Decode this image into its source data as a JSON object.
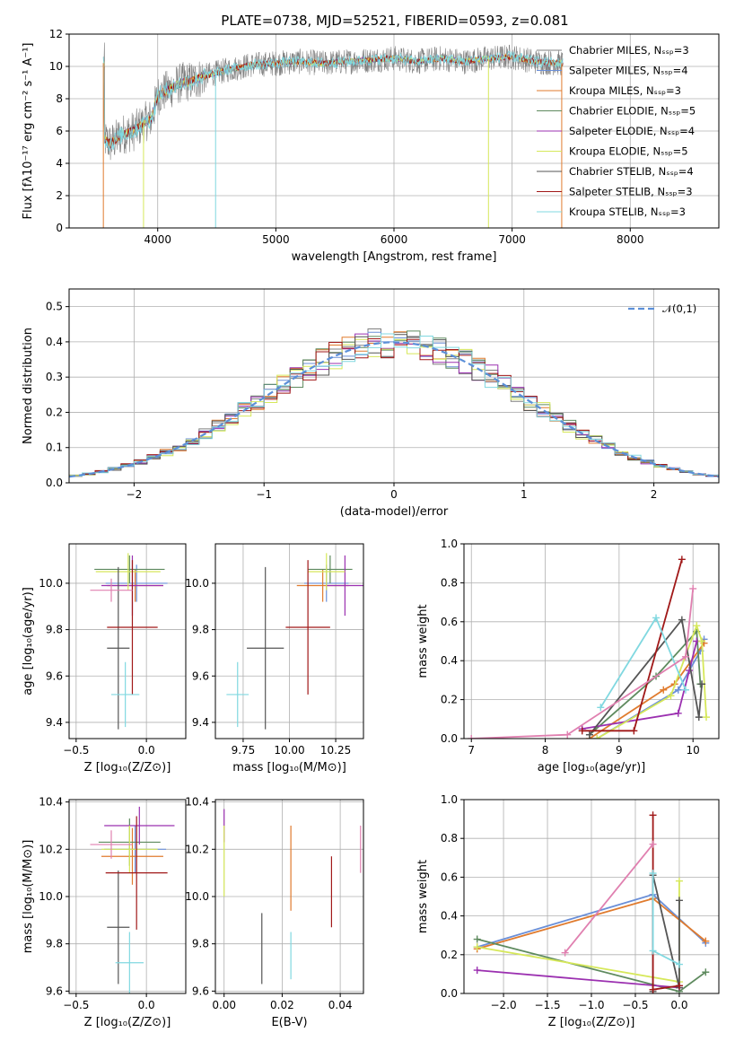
{
  "title": "PLATE=0738, MJD=52521, FIBERID=0593, z=0.081",
  "colors": {
    "chabrier_miles": "#808080",
    "salpeter_miles": "#6a8fd8",
    "kroupa_miles": "#e07b2e",
    "chabrier_elodie": "#5e8a5e",
    "salpeter_elodie": "#9b30b0",
    "kroupa_elodie": "#d6e85a",
    "chabrier_stelib": "#555555",
    "salpeter_stelib": "#a01818",
    "kroupa_stelib": "#80d8e0",
    "pink": "#e080b0",
    "gauss": "#5b8fd8"
  },
  "chart_data": [
    {
      "id": "spectrum",
      "type": "line",
      "xlabel": "wavelength [Angstrom, rest frame]",
      "ylabel": "Flux [fλ10⁻¹⁷ erg cm⁻² s⁻¹ A⁻¹]",
      "xlim": [
        3250,
        8750
      ],
      "ylim": [
        0,
        12
      ],
      "xticks": [
        4000,
        5000,
        6000,
        7000,
        8000
      ],
      "yticks": [
        0,
        2,
        4,
        6,
        8,
        10,
        12
      ],
      "legend_placement": "right",
      "legend": [
        {
          "label": "Chabrier MILES, Nₛₛₚ=3",
          "color": "#808080"
        },
        {
          "label": "Salpeter MILES, Nₛₛₚ=4",
          "color": "#6a8fd8"
        },
        {
          "label": "Kroupa MILES, Nₛₛₚ=3",
          "color": "#e07b2e"
        },
        {
          "label": "Chabrier ELODIE, Nₛₛₚ=5",
          "color": "#5e8a5e"
        },
        {
          "label": "Salpeter ELODIE, Nₛₛₚ=4",
          "color": "#9b30b0"
        },
        {
          "label": "Kroupa ELODIE, Nₛₛₚ=5",
          "color": "#d6e85a"
        },
        {
          "label": "Chabrier STELIB, Nₛₛₚ=4",
          "color": "#555555"
        },
        {
          "label": "Salpeter STELIB, Nₛₛₚ=3",
          "color": "#a01818"
        },
        {
          "label": "Kroupa STELIB, Nₛₛₚ=3",
          "color": "#80d8e0"
        }
      ],
      "data_series": {
        "x": [
          3550,
          3600,
          3700,
          3800,
          3900,
          3950,
          4000,
          4100,
          4200,
          4300,
          4400,
          4500,
          4600,
          4800,
          5000,
          5200,
          5400,
          5600,
          5800,
          6000,
          6200,
          6400,
          6600,
          6800,
          7000,
          7200,
          7400
        ],
        "y": [
          5.5,
          5.2,
          5.8,
          6.0,
          6.6,
          6.8,
          8.2,
          8.6,
          9.0,
          9.1,
          9.4,
          9.6,
          9.8,
          10.1,
          10.2,
          10.3,
          10.2,
          10.3,
          10.4,
          10.5,
          10.3,
          10.5,
          10.3,
          10.5,
          10.6,
          10.3,
          10.2
        ]
      }
    },
    {
      "id": "residuals",
      "type": "bar",
      "xlabel": "(data-model)/error",
      "ylabel": "Normed distribution",
      "xlim": [
        -2.5,
        2.5
      ],
      "ylim": [
        0,
        0.55
      ],
      "xticks": [
        -2,
        -1,
        0,
        1,
        2
      ],
      "yticks": [
        0.0,
        0.1,
        0.2,
        0.3,
        0.4,
        0.5
      ],
      "xticklabels": [
        "−2",
        "−1",
        "0",
        "1",
        "2"
      ],
      "legend": [
        {
          "label": "𝒩(0,1)",
          "style": "dashed"
        }
      ],
      "bin_width": 0.1
    },
    {
      "id": "age_vs_Z",
      "type": "scatter",
      "xlabel": "Z [log₁₀(Z/Z⊙)]",
      "ylabel": "age  [log₁₀(age/yr)]",
      "xlim": [
        -0.55,
        0.28
      ],
      "ylim": [
        9.33,
        10.17
      ],
      "xticks": [
        -0.5,
        0.0
      ],
      "yticks": [
        9.4,
        9.6,
        9.8,
        10.0
      ],
      "xticklabels": [
        "−0.5",
        "0.0"
      ],
      "points": [
        {
          "x": -0.07,
          "y": 10.0,
          "xerr": 0.22,
          "yerr": 0.08,
          "color": "#6a8fd8"
        },
        {
          "x": -0.08,
          "y": 9.99,
          "xerr": 0.2,
          "yerr": 0.07,
          "color": "#e07b2e"
        },
        {
          "x": -0.12,
          "y": 10.06,
          "xerr": 0.25,
          "yerr": 0.06,
          "color": "#5e8a5e"
        },
        {
          "x": -0.1,
          "y": 9.99,
          "xerr": 0.22,
          "yerr": 0.13,
          "color": "#9b30b0"
        },
        {
          "x": -0.13,
          "y": 10.05,
          "xerr": 0.23,
          "yerr": 0.08,
          "color": "#d6e85a"
        },
        {
          "x": -0.2,
          "y": 9.72,
          "xerr": 0.08,
          "yerr": 0.35,
          "color": "#555555"
        },
        {
          "x": -0.1,
          "y": 9.81,
          "xerr": 0.18,
          "yerr": 0.29,
          "color": "#a01818"
        },
        {
          "x": -0.15,
          "y": 9.52,
          "xerr": 0.1,
          "yerr": 0.14,
          "color": "#80d8e0"
        },
        {
          "x": -0.25,
          "y": 9.97,
          "xerr": 0.15,
          "yerr": 0.05,
          "color": "#e080b0"
        }
      ]
    },
    {
      "id": "age_vs_mass",
      "type": "scatter",
      "xlabel": "mass [log₁₀(M/M⊙)]",
      "ylabel": "",
      "xlim": [
        9.6,
        10.4
      ],
      "ylim": [
        9.33,
        10.17
      ],
      "xticks": [
        9.75,
        10.0,
        10.25
      ],
      "yticks": [
        9.4,
        9.6,
        9.8,
        10.0
      ],
      "xticklabels": [
        "9.75",
        "10.00",
        "10.25"
      ],
      "points": [
        {
          "x": 10.2,
          "y": 10.0,
          "xerr": 0.12,
          "yerr": 0.08,
          "color": "#6a8fd8"
        },
        {
          "x": 10.18,
          "y": 9.99,
          "xerr": 0.14,
          "yerr": 0.07,
          "color": "#e07b2e"
        },
        {
          "x": 10.22,
          "y": 10.06,
          "xerr": 0.12,
          "yerr": 0.06,
          "color": "#5e8a5e"
        },
        {
          "x": 10.3,
          "y": 9.99,
          "xerr": 0.1,
          "yerr": 0.13,
          "color": "#9b30b0"
        },
        {
          "x": 10.2,
          "y": 10.05,
          "xerr": 0.1,
          "yerr": 0.08,
          "color": "#d6e85a"
        },
        {
          "x": 9.87,
          "y": 9.72,
          "xerr": 0.1,
          "yerr": 0.35,
          "color": "#555555"
        },
        {
          "x": 10.1,
          "y": 9.81,
          "xerr": 0.12,
          "yerr": 0.29,
          "color": "#a01818"
        },
        {
          "x": 9.72,
          "y": 9.52,
          "xerr": 0.06,
          "yerr": 0.14,
          "color": "#80d8e0"
        }
      ]
    },
    {
      "id": "weight_vs_age",
      "type": "line",
      "xlabel": "age  [log₁₀(age/yr)]",
      "ylabel": "mass weight",
      "xlim": [
        6.9,
        10.35
      ],
      "ylim": [
        0,
        1
      ],
      "xticks": [
        7,
        8,
        9,
        10
      ],
      "yticks": [
        0.0,
        0.2,
        0.4,
        0.6,
        0.8,
        1.0
      ],
      "series": [
        {
          "color": "#6a8fd8",
          "x": [
            8.7,
            9.8,
            10.1,
            10.15
          ],
          "y": [
            0.0,
            0.25,
            0.45,
            0.51
          ]
        },
        {
          "color": "#e07b2e",
          "x": [
            8.6,
            9.6,
            9.75,
            10.15
          ],
          "y": [
            0.0,
            0.25,
            0.28,
            0.49
          ]
        },
        {
          "color": "#5e8a5e",
          "x": [
            8.6,
            9.5,
            10.05,
            10.1
          ],
          "y": [
            0.02,
            0.32,
            0.55,
            0.28
          ]
        },
        {
          "color": "#9b30b0",
          "x": [
            8.5,
            9.8,
            9.95,
            10.05
          ],
          "y": [
            0.05,
            0.13,
            0.35,
            0.5
          ]
        },
        {
          "color": "#d6e85a",
          "x": [
            8.7,
            9.7,
            10.05,
            10.12,
            10.18
          ],
          "y": [
            0.0,
            0.22,
            0.58,
            0.5,
            0.11
          ]
        },
        {
          "color": "#555555",
          "x": [
            8.6,
            9.85,
            10.08,
            10.12
          ],
          "y": [
            0.02,
            0.61,
            0.11,
            0.28
          ]
        },
        {
          "color": "#a01818",
          "x": [
            8.5,
            9.2,
            9.85
          ],
          "y": [
            0.04,
            0.04,
            0.92
          ]
        },
        {
          "color": "#80d8e0",
          "x": [
            8.75,
            9.5,
            9.9
          ],
          "y": [
            0.16,
            0.62,
            0.25
          ]
        },
        {
          "color": "#e080b0",
          "x": [
            7.0,
            8.3,
            9.9,
            10.0
          ],
          "y": [
            0.0,
            0.02,
            0.42,
            0.77
          ]
        }
      ]
    },
    {
      "id": "mass_vs_Z",
      "type": "scatter",
      "xlabel": "Z [log₁₀(Z/Z⊙)]",
      "ylabel": "mass [log₁₀(M/M⊙)]",
      "xlim": [
        -0.55,
        0.28
      ],
      "ylim": [
        9.59,
        10.41
      ],
      "xticks": [
        -0.5,
        0.0
      ],
      "yticks": [
        9.6,
        9.8,
        10.0,
        10.2,
        10.4
      ],
      "xticklabels": [
        "−0.5",
        "0.0"
      ],
      "points": [
        {
          "x": -0.08,
          "y": 10.2,
          "xerr": 0.22,
          "yerr": 0.1,
          "color": "#6a8fd8"
        },
        {
          "x": -0.1,
          "y": 10.17,
          "xerr": 0.22,
          "yerr": 0.12,
          "color": "#e07b2e"
        },
        {
          "x": -0.12,
          "y": 10.23,
          "xerr": 0.22,
          "yerr": 0.1,
          "color": "#5e8a5e"
        },
        {
          "x": -0.05,
          "y": 10.3,
          "xerr": 0.25,
          "yerr": 0.08,
          "color": "#9b30b0"
        },
        {
          "x": -0.12,
          "y": 10.2,
          "xerr": 0.2,
          "yerr": 0.1,
          "color": "#d6e85a"
        },
        {
          "x": -0.2,
          "y": 9.87,
          "xerr": 0.08,
          "yerr": 0.24,
          "color": "#555555"
        },
        {
          "x": -0.07,
          "y": 10.1,
          "xerr": 0.22,
          "yerr": 0.24,
          "color": "#a01818"
        },
        {
          "x": -0.12,
          "y": 9.72,
          "xerr": 0.1,
          "yerr": 0.13,
          "color": "#80d8e0"
        },
        {
          "x": -0.25,
          "y": 10.22,
          "xerr": 0.15,
          "yerr": 0.06,
          "color": "#e080b0"
        }
      ]
    },
    {
      "id": "mass_vs_ebv",
      "type": "scatter",
      "xlabel": "E(B-V)",
      "ylabel": "",
      "xlim": [
        -0.003,
        0.048
      ],
      "ylim": [
        9.59,
        10.41
      ],
      "xticks": [
        0.0,
        0.02,
        0.04
      ],
      "yticks": [
        9.6,
        9.8,
        10.0,
        10.2,
        10.4
      ],
      "xticklabels": [
        "0.00",
        "0.02",
        "0.04"
      ],
      "points": [
        {
          "x": 0.0,
          "y": 10.3,
          "yerr": 0.07,
          "color": "#9b30b0"
        },
        {
          "x": 0.0,
          "y": 10.15,
          "yerr": 0.15,
          "color": "#d6e85a"
        },
        {
          "x": 0.013,
          "y": 9.78,
          "yerr": 0.15,
          "color": "#555555"
        },
        {
          "x": 0.023,
          "y": 10.12,
          "yerr": 0.18,
          "color": "#e07b2e"
        },
        {
          "x": 0.023,
          "y": 9.75,
          "yerr": 0.1,
          "color": "#80d8e0"
        },
        {
          "x": 0.037,
          "y": 10.02,
          "yerr": 0.15,
          "color": "#a01818"
        },
        {
          "x": 0.047,
          "y": 10.2,
          "yerr": 0.1,
          "color": "#e080b0"
        }
      ]
    },
    {
      "id": "weight_vs_Z",
      "type": "line",
      "xlabel": "Z [log₁₀(Z/Z⊙)]",
      "ylabel": "mass weight",
      "xlim": [
        -2.45,
        0.45
      ],
      "ylim": [
        0,
        1
      ],
      "xticks": [
        -2.0,
        -1.5,
        -1.0,
        -0.5,
        0.0
      ],
      "yticks": [
        0.0,
        0.2,
        0.4,
        0.6,
        0.8,
        1.0
      ],
      "xticklabels": [
        "−2.0",
        "−1.5",
        "−1.0",
        "−0.5",
        "0.0"
      ],
      "series": [
        {
          "color": "#6a8fd8",
          "x": [
            -2.3,
            -0.3,
            0.3
          ],
          "y": [
            0.24,
            0.51,
            0.26
          ]
        },
        {
          "color": "#e07b2e",
          "x": [
            -2.3,
            -0.3,
            0.3
          ],
          "y": [
            0.23,
            0.49,
            0.27
          ]
        },
        {
          "color": "#5e8a5e",
          "x": [
            -2.3,
            0.0,
            0.3
          ],
          "y": [
            0.28,
            0.01,
            0.11
          ]
        },
        {
          "color": "#9b30b0",
          "x": [
            -2.3,
            0.0
          ],
          "y": [
            0.12,
            0.03
          ]
        },
        {
          "color": "#d6e85a",
          "x": [
            -2.3,
            0.0,
            0.0
          ],
          "y": [
            0.24,
            0.06,
            0.58
          ]
        },
        {
          "color": "#555555",
          "x": [
            -0.3,
            -0.3,
            0.0,
            0.0
          ],
          "y": [
            0.01,
            0.61,
            0.03,
            0.48
          ]
        },
        {
          "color": "#a01818",
          "x": [
            -0.3,
            -0.3,
            0.0
          ],
          "y": [
            0.92,
            0.02,
            0.04
          ]
        },
        {
          "color": "#80d8e0",
          "x": [
            -0.3,
            -0.3,
            0.0
          ],
          "y": [
            0.62,
            0.22,
            0.15
          ]
        },
        {
          "color": "#e080b0",
          "x": [
            -1.3,
            -0.3
          ],
          "y": [
            0.21,
            0.77
          ]
        }
      ]
    }
  ]
}
